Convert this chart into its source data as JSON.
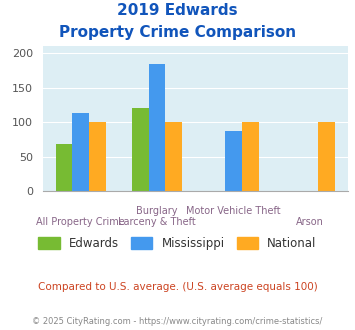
{
  "title_line1": "2019 Edwards",
  "title_line2": "Property Crime Comparison",
  "cat_labels_top": [
    "",
    "Burglary",
    "Motor Vehicle Theft",
    ""
  ],
  "cat_labels_bot": [
    "All Property Crime",
    "Larceny & Theft",
    "",
    "Arson"
  ],
  "edwards": [
    68,
    120,
    0,
    0
  ],
  "mississippi": [
    113,
    184,
    87,
    0
  ],
  "national": [
    100,
    100,
    100,
    100
  ],
  "edwards_color": "#77bb33",
  "mississippi_color": "#4499ee",
  "national_color": "#ffaa22",
  "ylim": [
    0,
    210
  ],
  "yticks": [
    0,
    50,
    100,
    150,
    200
  ],
  "bg_color": "#ddeef4",
  "subtitle": "Compared to U.S. average. (U.S. average equals 100)",
  "footer": "© 2025 CityRating.com - https://www.cityrating.com/crime-statistics/",
  "title_color": "#1155bb",
  "subtitle_color": "#cc4422",
  "footer_color": "#888888",
  "xlabel_color": "#886688",
  "legend_labels": [
    "Edwards",
    "Mississippi",
    "National"
  ]
}
